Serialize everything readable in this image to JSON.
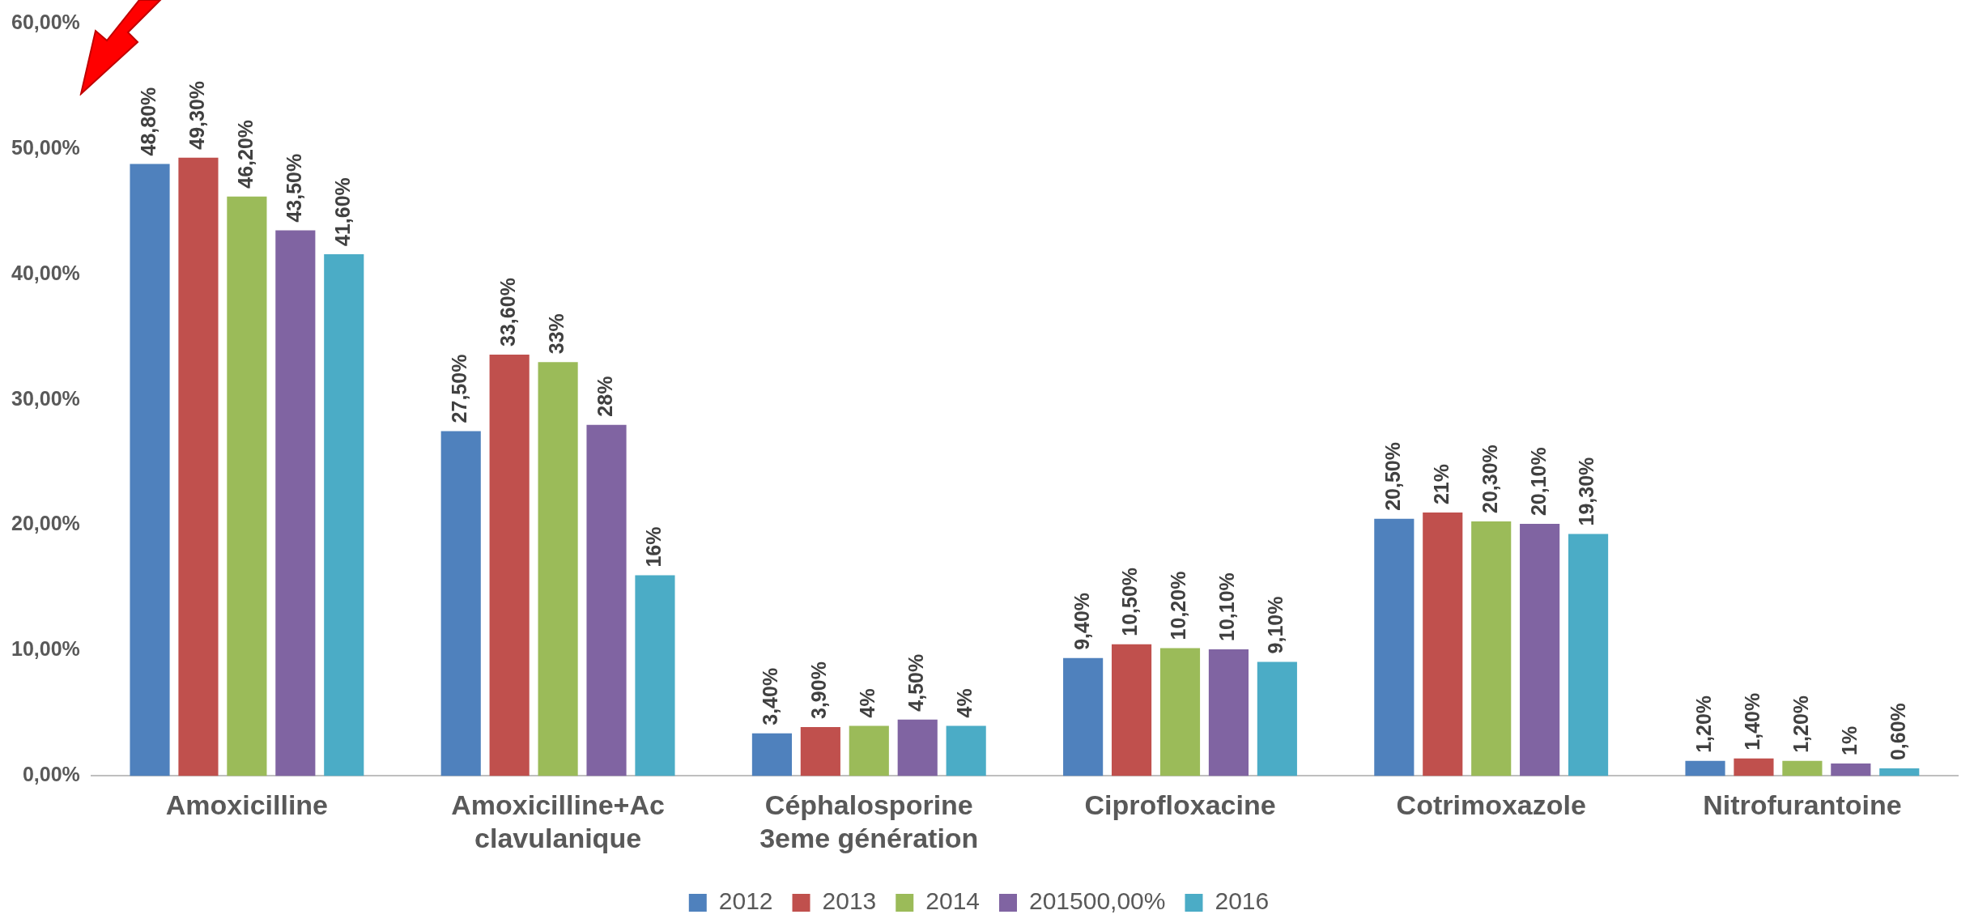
{
  "chart_data": {
    "type": "bar",
    "categories": [
      "Amoxicilline",
      "Amoxicilline+Ac clavulanique",
      "Céphalosporine 3eme génération",
      "Ciprofloxacine",
      "Cotrimoxazole",
      "Nitrofurantoine"
    ],
    "series": [
      {
        "name": "2012",
        "color": "#4f81bd",
        "values": [
          48.8,
          27.5,
          3.4,
          9.4,
          20.5,
          1.2
        ],
        "value_labels": [
          "48,80%",
          "27,50%",
          "3,40%",
          "9,40%",
          "20,50%",
          "1,20%"
        ]
      },
      {
        "name": "2013",
        "color": "#c0504d",
        "values": [
          49.3,
          33.6,
          3.9,
          10.5,
          21,
          1.4
        ],
        "value_labels": [
          "49,30%",
          "33,60%",
          "3,90%",
          "10,50%",
          "21%",
          "1,40%"
        ]
      },
      {
        "name": "2014",
        "color": "#9bbb59",
        "values": [
          46.2,
          33,
          4,
          10.2,
          20.3,
          1.2
        ],
        "value_labels": [
          "46,20%",
          "33%",
          "4%",
          "10,20%",
          "20,30%",
          "1,20%"
        ]
      },
      {
        "name": "201500,00%",
        "color": "#8064a2",
        "values": [
          43.5,
          28,
          4.5,
          10.1,
          20.1,
          1
        ],
        "value_labels": [
          "43,50%",
          "28%",
          "4,50%",
          "10,10%",
          "20,10%",
          "1%"
        ]
      },
      {
        "name": "2016",
        "color": "#4bacc6",
        "values": [
          41.6,
          16,
          4,
          9.1,
          19.3,
          0.6
        ],
        "value_labels": [
          "41,60%",
          "16%",
          "4%",
          "9,10%",
          "19,30%",
          "0,60%"
        ]
      }
    ],
    "ylim": [
      0,
      60
    ],
    "yticks": [
      {
        "value": 0,
        "label": "0,00%"
      },
      {
        "value": 10,
        "label": "10,00%"
      },
      {
        "value": 20,
        "label": "20,00%"
      },
      {
        "value": 30,
        "label": "30,00%"
      },
      {
        "value": 40,
        "label": "40,00%"
      },
      {
        "value": 50,
        "label": "50,00%"
      },
      {
        "value": 60,
        "label": "60,00%"
      }
    ],
    "grid": false,
    "legend": "bottom"
  }
}
